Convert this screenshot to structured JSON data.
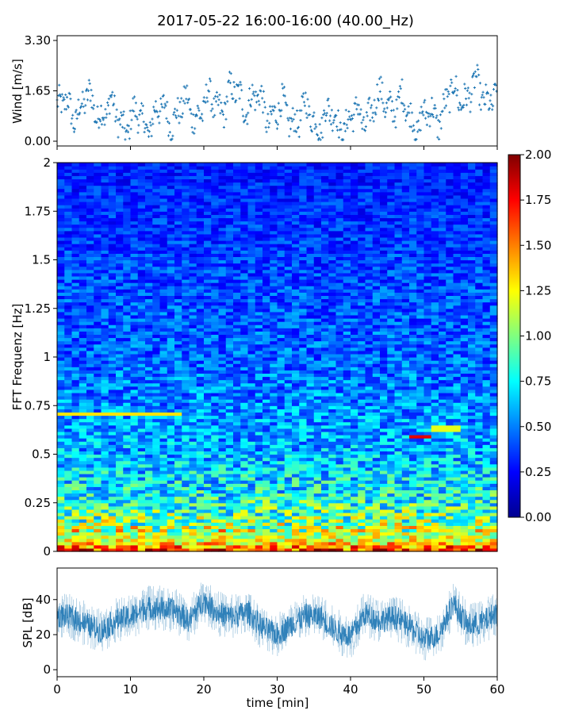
{
  "figure": {
    "title": "2017-05-22 16:00-16:00 (40.00_Hz)"
  },
  "colors": {
    "wind_marker": "#1f77b4",
    "spl_line": "#1f77b4",
    "axis": "#000000"
  },
  "chart_data": [
    {
      "type": "scatter",
      "name": "wind",
      "ylabel": "Wind [m/s]",
      "xlim": [
        0,
        60
      ],
      "ylim": [
        0,
        3.3
      ],
      "yticks": [
        0.0,
        1.65,
        3.3
      ],
      "ytick_labels": [
        "0.00",
        "1.65",
        "3.30"
      ],
      "marker": "+",
      "segments": [
        {
          "x": [
            0,
            5,
            10,
            15,
            20,
            25,
            30,
            35,
            40,
            45,
            50,
            55,
            60
          ],
          "y": [
            1.0,
            1.2,
            0.6,
            0.9,
            1.1,
            1.5,
            0.9,
            0.8,
            0.6,
            1.4,
            0.6,
            1.6,
            1.5
          ]
        }
      ]
    },
    {
      "type": "heatmap",
      "name": "spectrogram",
      "ylabel": "FFT Frequenz [Hz]",
      "xlim": [
        0,
        60
      ],
      "ylim": [
        0,
        2
      ],
      "yticks": [
        0,
        0.25,
        0.5,
        0.75,
        1,
        1.25,
        1.5,
        1.75,
        2
      ],
      "ytick_labels": [
        "0",
        "0.25",
        "0.5",
        "0.75",
        "1",
        "1.25",
        "1.5",
        "1.75",
        "2"
      ],
      "colormap": "jet",
      "clim": [
        0,
        2
      ],
      "colorbar_ticks": [
        "0.00",
        "0.25",
        "0.50",
        "0.75",
        "1.00",
        "1.25",
        "1.50",
        "1.75",
        "2.00"
      ],
      "time_bins": 60,
      "freq_bins": 120,
      "level_profile": {
        "freq_hz": [
          0,
          0.05,
          0.15,
          0.3,
          0.5,
          1.0,
          1.5,
          2.0
        ],
        "level": [
          1.9,
          1.3,
          1.0,
          0.75,
          0.6,
          0.45,
          0.38,
          0.3
        ]
      },
      "features": [
        {
          "label": "line",
          "t_start": 0,
          "t_end": 17,
          "freq_hz": 0.71,
          "level": 1.3
        },
        {
          "label": "line",
          "t_start": 48,
          "t_end": 51,
          "freq_hz": 0.59,
          "level": 1.8
        },
        {
          "label": "line",
          "t_start": 51,
          "t_end": 55,
          "freq_hz": 0.635,
          "level": 1.2
        }
      ]
    },
    {
      "type": "line",
      "name": "spl",
      "xlabel": "time [min]",
      "ylabel": "SPL [dB]",
      "xlim": [
        0,
        60
      ],
      "ylim": [
        -4,
        58
      ],
      "xticks": [
        0,
        10,
        20,
        30,
        40,
        50,
        60
      ],
      "xtick_labels": [
        "0",
        "10",
        "20",
        "30",
        "40",
        "50",
        "60"
      ],
      "yticks": [
        0,
        20,
        40
      ],
      "ytick_labels": [
        "0",
        "20",
        "40"
      ],
      "envelope": {
        "x": [
          0,
          2,
          4,
          6,
          8,
          10,
          12,
          14,
          16,
          18,
          20,
          22,
          24,
          26,
          28,
          30,
          32,
          34,
          36,
          38,
          40,
          42,
          44,
          46,
          48,
          50,
          52,
          54,
          56,
          58,
          60
        ],
        "mean": [
          31,
          30,
          26,
          22,
          28,
          30,
          35,
          35,
          34,
          28,
          40,
          32,
          30,
          33,
          24,
          20,
          26,
          31,
          30,
          22,
          19,
          32,
          28,
          30,
          25,
          17,
          20,
          38,
          25,
          27,
          33
        ]
      }
    }
  ]
}
